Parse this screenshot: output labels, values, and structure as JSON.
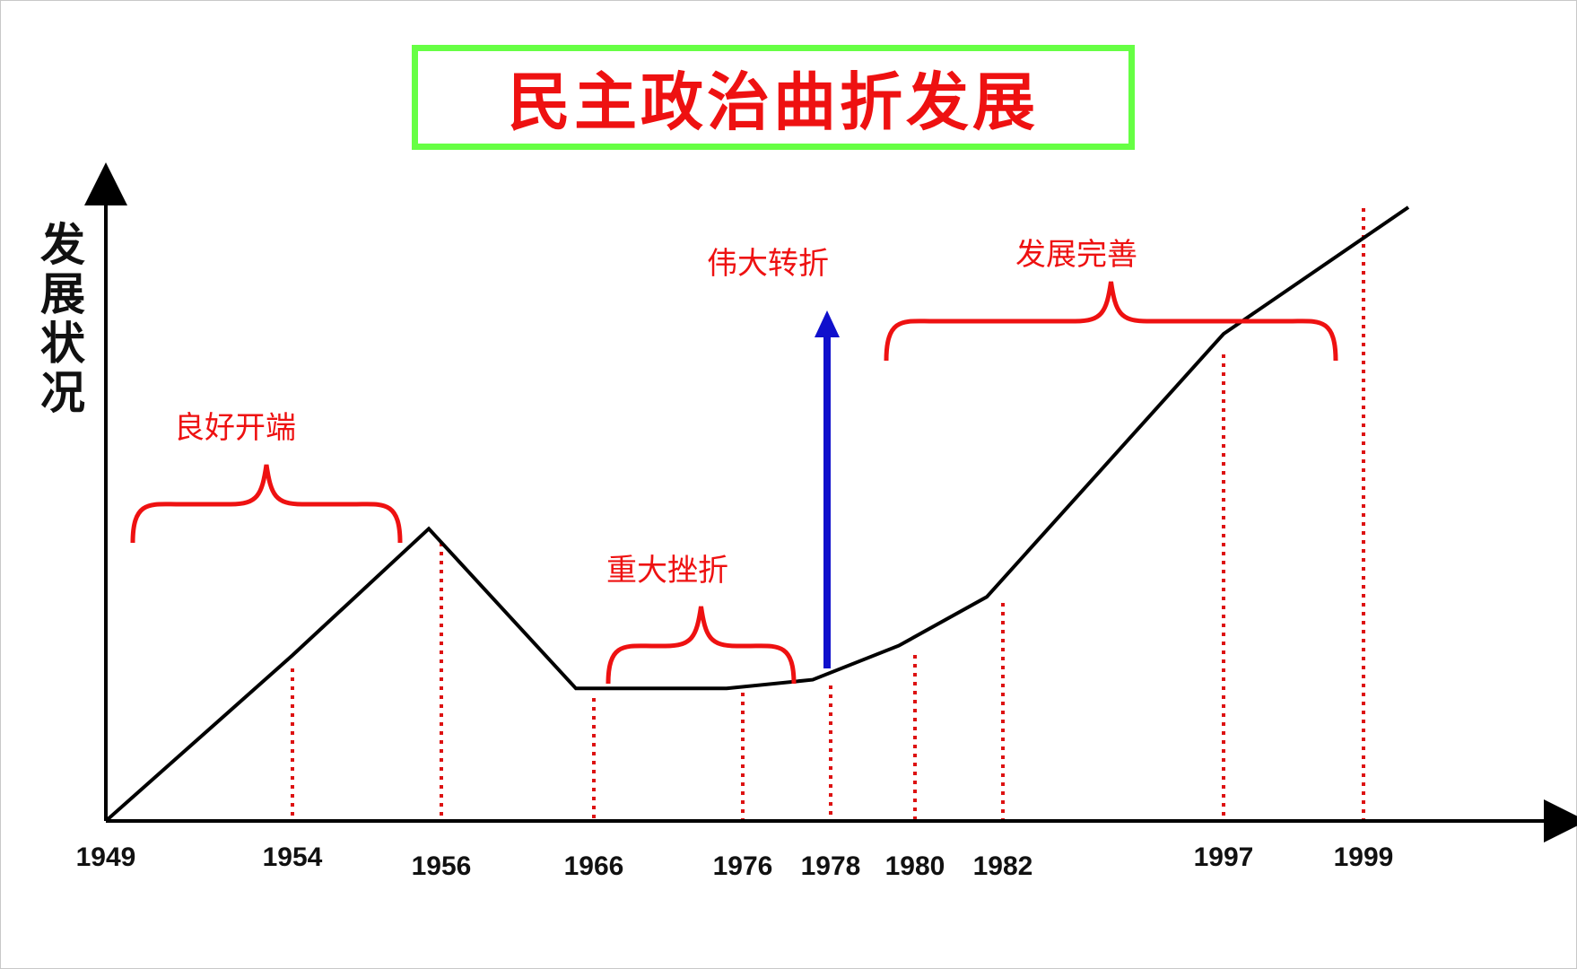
{
  "chart_data": {
    "type": "line",
    "title": "民主政治曲折发展",
    "ylabel": "发展状况",
    "xlabel": "",
    "x": [
      "1949",
      "1954",
      "1956",
      "1966",
      "1976",
      "1978",
      "1980",
      "1982",
      "1997",
      "1999"
    ],
    "series": [
      {
        "values": [
          0,
          1.7,
          3.0,
          1.36,
          1.36,
          1.45,
          1.8,
          2.3,
          5.0,
          6.3
        ]
      }
    ],
    "ylim": [
      0,
      7
    ],
    "grid": false,
    "annotations": [
      {
        "label": "良好开端",
        "from": "1949",
        "to": "1956"
      },
      {
        "label": "重大挫折",
        "from": "1966",
        "to": "1976"
      },
      {
        "label": "伟大转折",
        "at": "1978"
      },
      {
        "label": "发展完善",
        "from": "1978",
        "to": "1999"
      }
    ],
    "colors": {
      "line": "#000000",
      "annotation": "#ee1111",
      "arrow": "#1010cc",
      "title_border": "#66ff44",
      "dotted": "#dd1111"
    }
  }
}
